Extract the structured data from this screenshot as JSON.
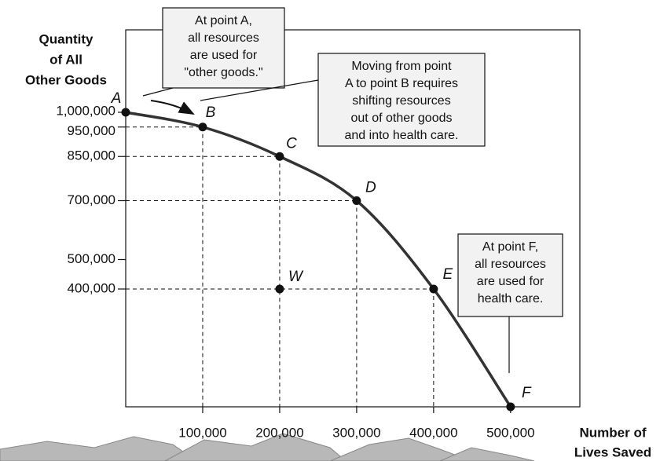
{
  "chart_data": {
    "type": "line",
    "y_label": [
      "Quantity",
      "of All",
      "Other Goods"
    ],
    "x_label": [
      "Number of",
      "Lives Saved"
    ],
    "x": [
      0,
      100000,
      200000,
      300000,
      400000,
      500000
    ],
    "values": [
      1000000,
      950000,
      850000,
      700000,
      400000,
      0
    ],
    "point_labels": [
      "A",
      "B",
      "C",
      "D",
      "E",
      "F"
    ],
    "extra_points": {
      "x": [
        200000
      ],
      "values": [
        400000
      ],
      "labels": [
        "W"
      ]
    },
    "color": "#333333",
    "xlim": [
      0,
      590000
    ],
    "ylim": [
      0,
      1280000
    ],
    "xticks": [
      {
        "value": 100000,
        "label": "100,000"
      },
      {
        "value": 200000,
        "label": "200,000"
      },
      {
        "value": 300000,
        "label": "300,000"
      },
      {
        "value": 400000,
        "label": "400,000"
      },
      {
        "value": 500000,
        "label": "500,000"
      }
    ],
    "yticks": [
      {
        "value": 400000,
        "label": "400,000"
      },
      {
        "value": 500000,
        "label": "500,000"
      },
      {
        "value": 700000,
        "label": "700,000"
      },
      {
        "value": 850000,
        "label": "850,000"
      },
      {
        "value": 950000,
        "label": "950,000"
      },
      {
        "value": 1000000,
        "label": "1,000,000"
      }
    ],
    "annotations": [
      {
        "lines": [
          "At point A,",
          "all resources",
          "are used for",
          "\"other goods.\""
        ]
      },
      {
        "lines": [
          "Moving from point",
          "A to point B requires",
          "shifting resources",
          "out of other goods",
          "and into health care."
        ]
      },
      {
        "lines": [
          "At point F,",
          "all resources",
          "are used for",
          "health care."
        ]
      }
    ]
  }
}
